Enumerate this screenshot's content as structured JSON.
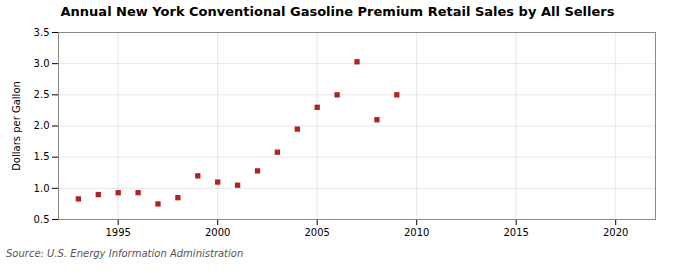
{
  "chart_data": {
    "type": "scatter",
    "title": "Annual New York Conventional Gasoline Premium Retail Sales by All Sellers",
    "y_label": "Dollars per Gallon",
    "annotations": [
      "Source: U.S. Energy Information Administration"
    ],
    "x": [
      1993,
      1994,
      1995,
      1996,
      1997,
      1998,
      1999,
      2000,
      2001,
      2002,
      2003,
      2004,
      2005,
      2006,
      2007,
      2008,
      2009
    ],
    "values": [
      0.83,
      0.9,
      0.93,
      0.93,
      0.75,
      0.85,
      1.2,
      1.1,
      1.05,
      1.28,
      1.58,
      1.95,
      2.3,
      2.5,
      3.03,
      2.1,
      2.5
    ],
    "color": "#b22222",
    "marker": "square",
    "xlim": [
      1992,
      2022
    ],
    "ylim": [
      0.5,
      3.5
    ],
    "xticks": [
      1995,
      2000,
      2005,
      2010,
      2015,
      2020
    ],
    "yticks": [
      0.5,
      {
        "value": 1.0,
        "label": "1.0"
      },
      1.5,
      {
        "value": 2.0,
        "label": "2.0"
      },
      2.5,
      {
        "value": 3.0,
        "label": "3.0"
      },
      3.5
    ],
    "grid": true
  }
}
